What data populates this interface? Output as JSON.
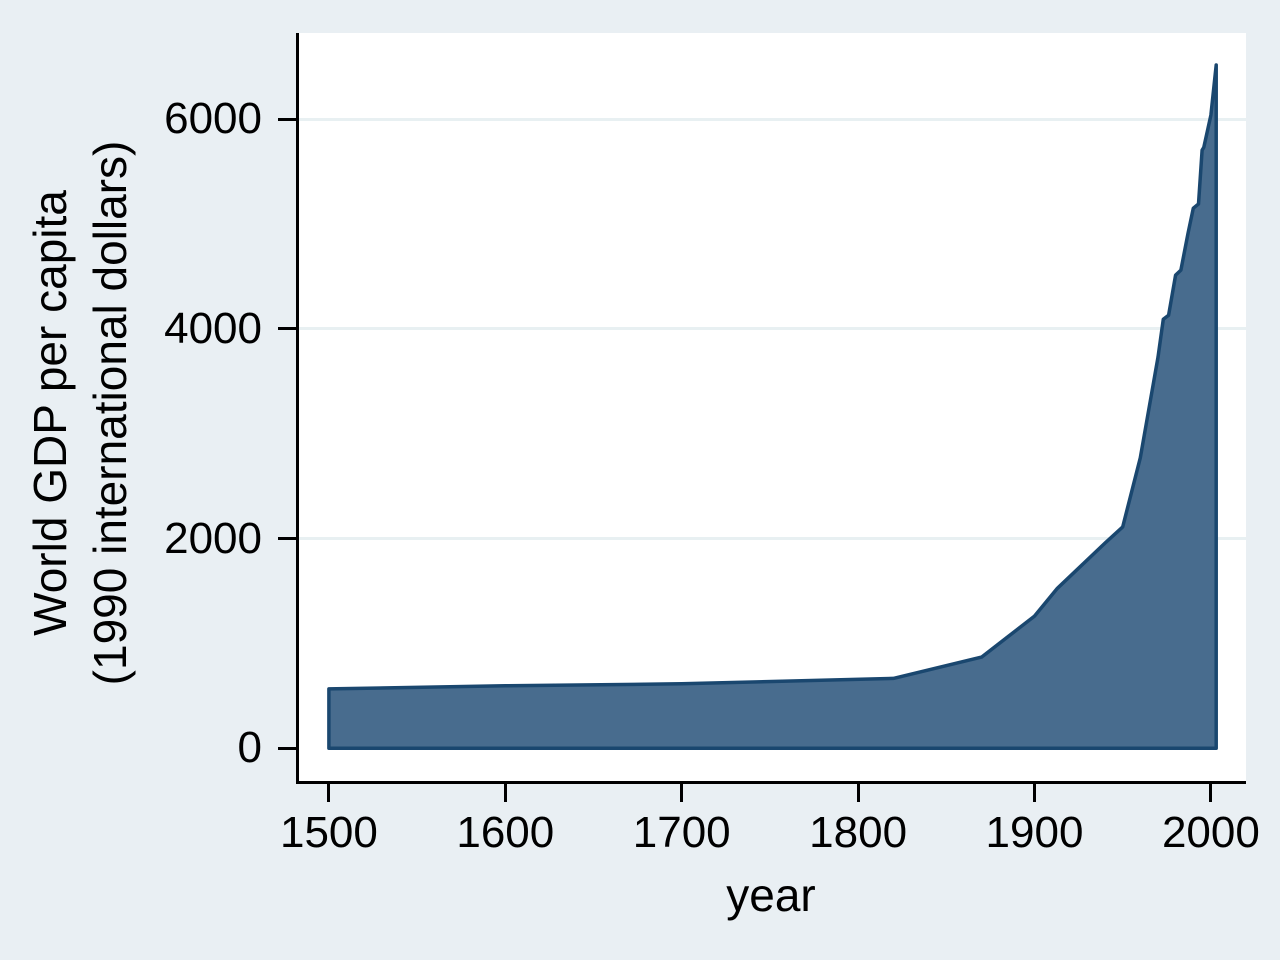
{
  "chart_data": {
    "type": "area",
    "title": "",
    "xlabel": "year",
    "ylabel": "World GDP per capita (1990 international dollars)",
    "ylabel_lines": [
      "World GDP per capita",
      "(1990 international dollars)"
    ],
    "x_ticks": [
      1500,
      1600,
      1700,
      1800,
      1900,
      2000
    ],
    "y_ticks": [
      0,
      2000,
      4000,
      6000
    ],
    "grid_y": [
      2000,
      4000,
      6000
    ],
    "xlim": [
      1481.9,
      2019.9
    ],
    "ylim": [
      -331,
      6821
    ],
    "baseline": 0,
    "legend": "none",
    "grid": "horizontal-only",
    "series": [
      {
        "name": "World GDP per capita (1990 international dollars)",
        "points": [
          [
            1500,
            566
          ],
          [
            1600,
            596
          ],
          [
            1700,
            615
          ],
          [
            1820,
            666
          ],
          [
            1870,
            870
          ],
          [
            1900,
            1261
          ],
          [
            1913,
            1526
          ],
          [
            1940,
            1958
          ],
          [
            1950,
            2111
          ],
          [
            1960,
            2770
          ],
          [
            1970,
            3729
          ],
          [
            1973,
            4091
          ],
          [
            1976,
            4130
          ],
          [
            1980,
            4512
          ],
          [
            1983,
            4560
          ],
          [
            1987,
            4910
          ],
          [
            1990,
            5150
          ],
          [
            1993,
            5190
          ],
          [
            1995,
            5703
          ],
          [
            1996,
            5730
          ],
          [
            2000,
            6038
          ],
          [
            2003,
            6516
          ]
        ]
      }
    ],
    "colors": {
      "area_fill": "#486C8E",
      "area_line": "#1A476F",
      "background": "#E9EFF3",
      "plot_background": "#FFFFFF",
      "grid": "#E8F0F2",
      "axis": "#000000",
      "text": "#000000"
    }
  }
}
